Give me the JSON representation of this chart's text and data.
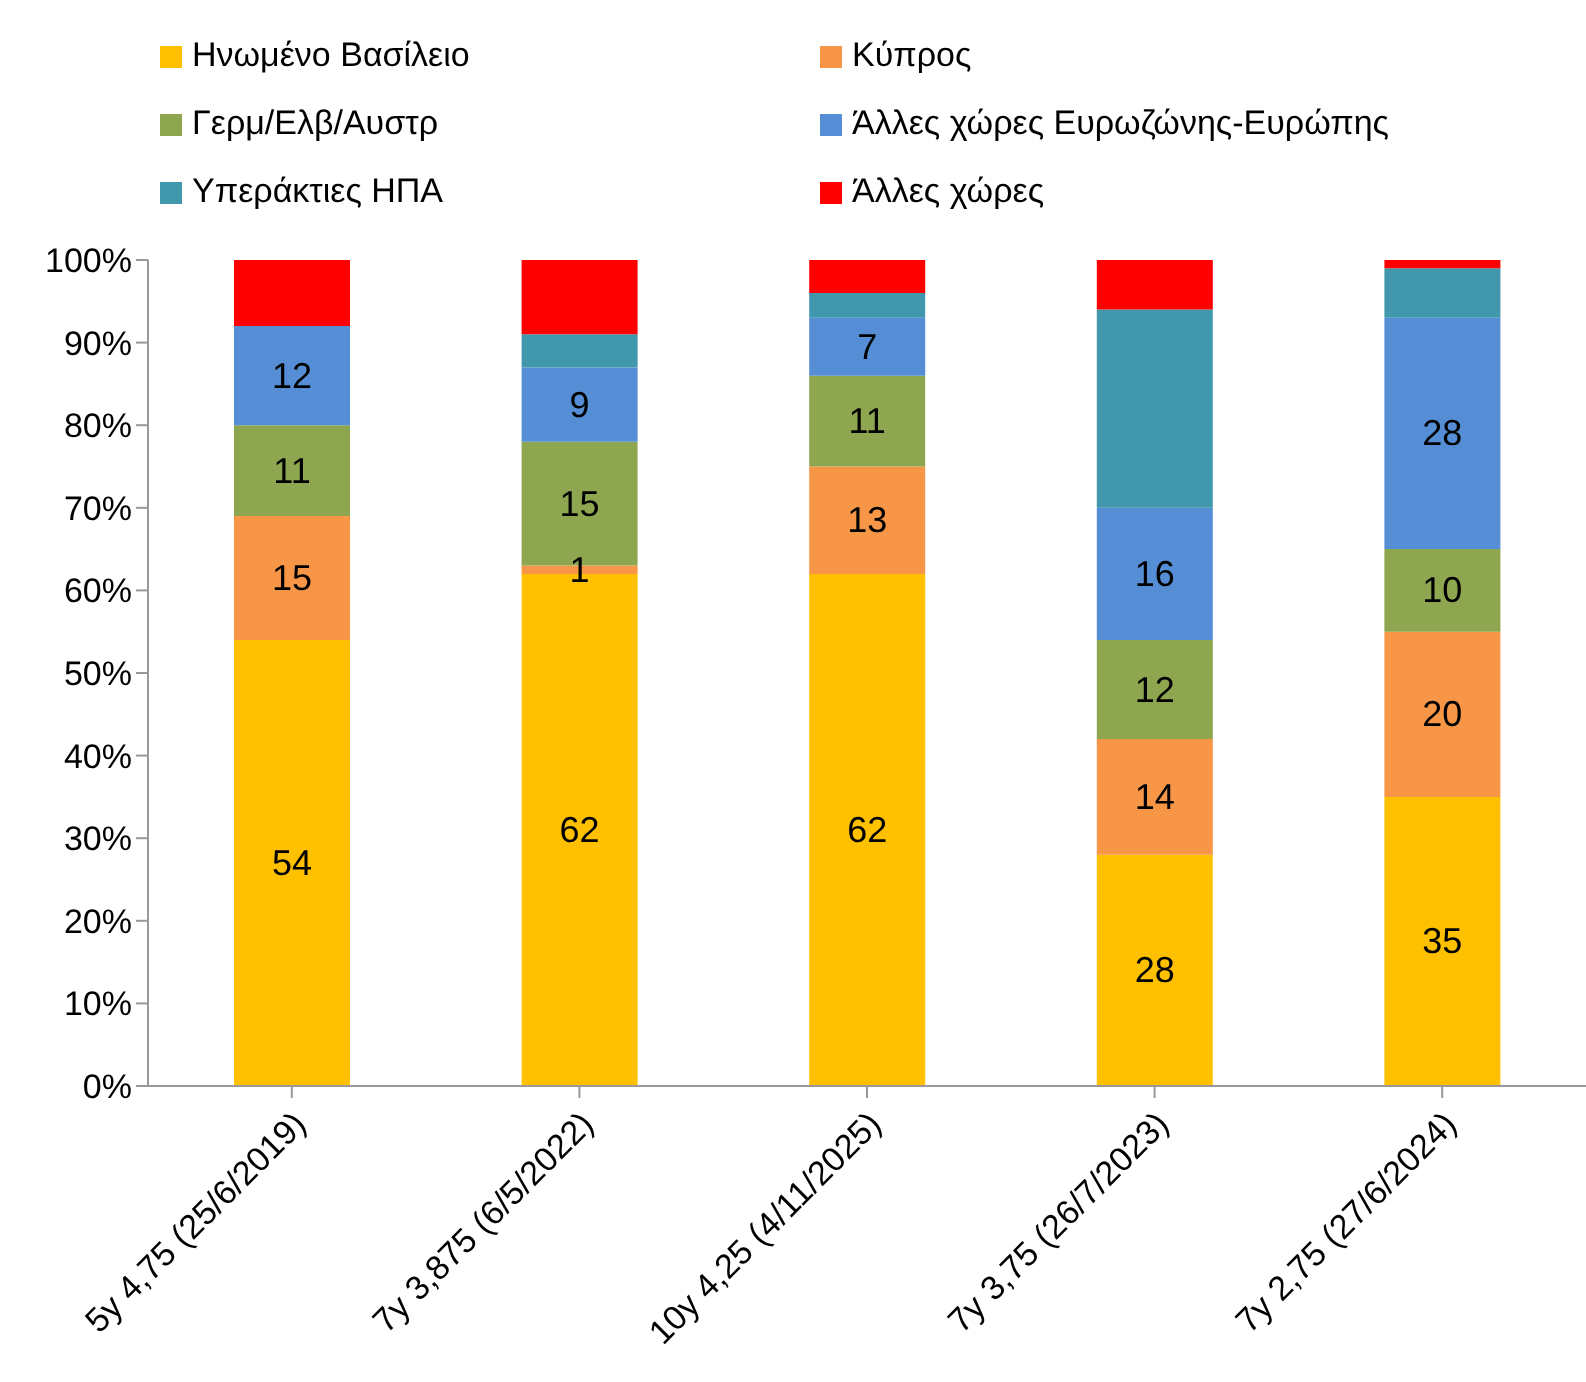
{
  "chart_data": {
    "type": "bar",
    "stacked": true,
    "legend": "top",
    "grid": false,
    "categories": [
      "5y 4,75 (25/6/2019)",
      "7y 3,875 (6/5/2022)",
      "10y 4,25 (4/11/2025)",
      "7y 3,75 (26/7/2023)",
      "7y 2,75 (27/6/2024)"
    ],
    "ylim": [
      0,
      100
    ],
    "yticks": [
      {
        "value": 0,
        "label": "0%"
      },
      {
        "value": 10,
        "label": "10%"
      },
      {
        "value": 20,
        "label": "20%"
      },
      {
        "value": 30,
        "label": "30%"
      },
      {
        "value": 40,
        "label": "40%"
      },
      {
        "value": 50,
        "label": "50%"
      },
      {
        "value": 60,
        "label": "60%"
      },
      {
        "value": 70,
        "label": "70%"
      },
      {
        "value": 80,
        "label": "80%"
      },
      {
        "value": 90,
        "label": "90%"
      },
      {
        "value": 100,
        "label": "100%"
      }
    ],
    "series": [
      {
        "name": "Ηνωμένο Βασίλειο",
        "color": "#ffc000",
        "values": [
          54,
          62,
          62,
          28,
          35
        ],
        "value_labels": [
          "54",
          "62",
          "62",
          "28",
          "35"
        ]
      },
      {
        "name": "Κύπρος",
        "color": "#f79646",
        "values": [
          15,
          1,
          13,
          14,
          20
        ],
        "value_labels": [
          "15",
          "1",
          "13",
          "14",
          "20"
        ]
      },
      {
        "name": "Γερμ/Ελβ/Αυστρ",
        "color": "#8ea64f",
        "values": [
          11,
          15,
          11,
          12,
          10
        ],
        "value_labels": [
          "11",
          "15",
          "11",
          "12",
          "10"
        ]
      },
      {
        "name": "Άλλες χώρες Ευρωζώνης-Ευρώπης",
        "color": "#558ed5",
        "values": [
          12,
          9,
          7,
          16,
          28
        ],
        "value_labels": [
          "12",
          "9",
          "7",
          "16",
          "28"
        ]
      },
      {
        "name": "Υπεράκτιες ΗΠΑ",
        "color": "#4198ad",
        "values": [
          0,
          4,
          3,
          24,
          6
        ],
        "value_labels": [
          null,
          null,
          null,
          null,
          null
        ]
      },
      {
        "name": "Άλλες χώρες",
        "color": "#ff0000",
        "values": [
          8,
          9,
          4,
          6,
          1
        ],
        "value_labels": [
          null,
          null,
          null,
          null,
          null
        ]
      }
    ]
  }
}
